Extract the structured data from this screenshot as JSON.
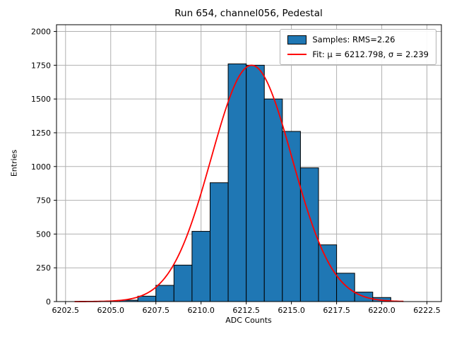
{
  "chart_data": {
    "type": "bar",
    "subtype": "histogram-with-gaussian-fit",
    "title": "Run 654, channel056, Pedestal",
    "xlabel": "ADC Counts",
    "ylabel": "Entries",
    "xlim": [
      6202.0,
      6223.3
    ],
    "ylim": [
      0,
      2050
    ],
    "grid": true,
    "x_tick_labels": [
      "6202.5",
      "6205.0",
      "6207.5",
      "6210.0",
      "6212.5",
      "6215.0",
      "6217.5",
      "6220.0",
      "6222.5"
    ],
    "y_tick_labels": [
      "0",
      "250",
      "500",
      "750",
      "1000",
      "1250",
      "1500",
      "1750",
      "2000"
    ],
    "bin_edges": [
      6205.5,
      6206.5,
      6207.5,
      6208.5,
      6209.5,
      6210.5,
      6211.5,
      6212.5,
      6213.5,
      6214.5,
      6215.5,
      6216.5,
      6217.5,
      6218.5,
      6219.5,
      6220.5
    ],
    "counts": [
      10,
      40,
      120,
      270,
      520,
      880,
      1760,
      1750,
      1500,
      1260,
      990,
      420,
      210,
      70,
      30
    ],
    "bar_color": "#1f77b4",
    "bar_edge_color": "#000000",
    "fit": {
      "mu": 6212.798,
      "sigma": 2.239,
      "amplitude": 1750,
      "color": "#ff0000",
      "x_range": [
        6203.0,
        6221.2
      ]
    },
    "legend": [
      {
        "label": "Samples: RMS=2.26",
        "swatch": "patch"
      },
      {
        "label": "Fit: μ = 6212.798, σ = 2.239",
        "swatch": "line"
      }
    ],
    "grid_color": "#b0b0b0",
    "spine_color": "#000000",
    "legend_position": "upper right"
  }
}
